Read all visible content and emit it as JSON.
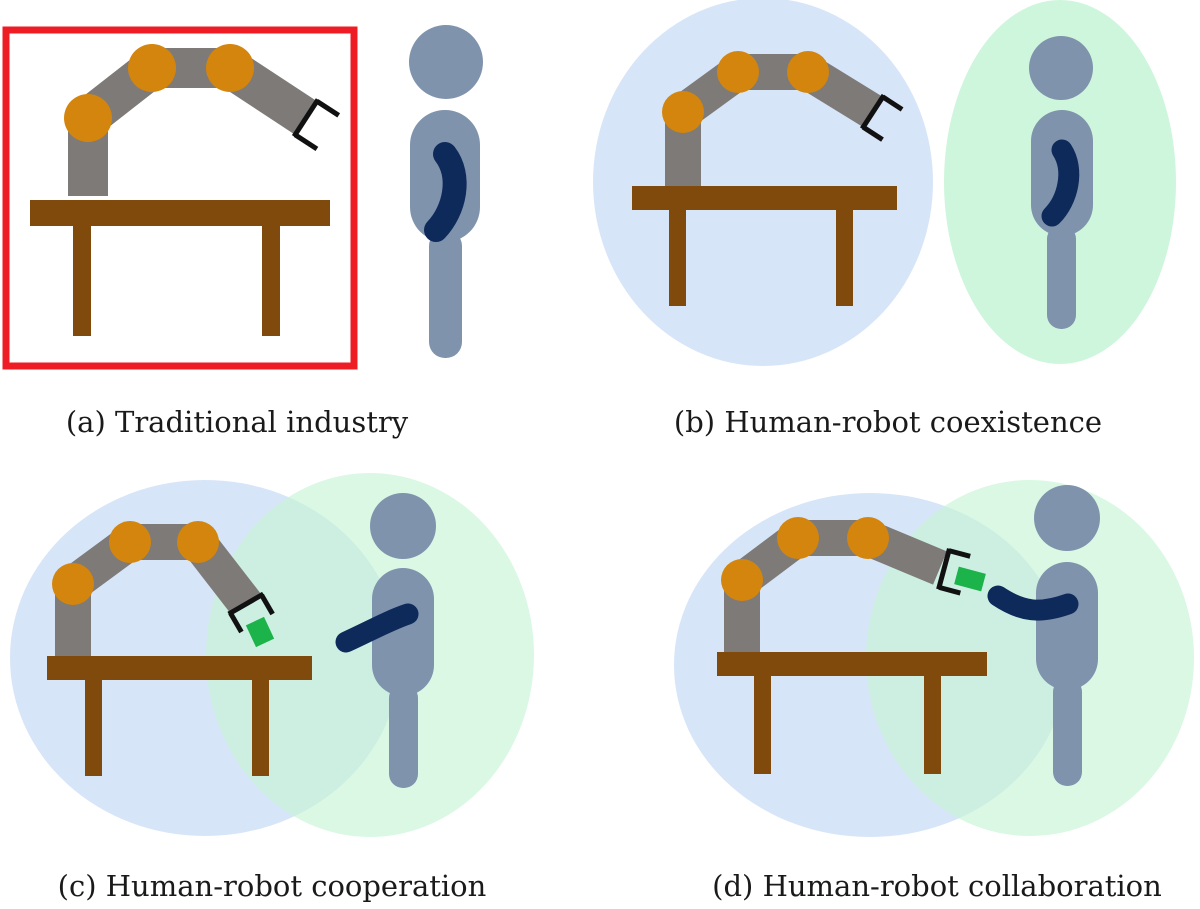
{
  "panels": [
    {
      "id": "a",
      "caption": "(a) Traditional industry"
    },
    {
      "id": "b",
      "caption": "(b) Human-robot coexistence"
    },
    {
      "id": "c",
      "caption": "(c) Human-robot cooperation"
    },
    {
      "id": "d",
      "caption": "(d) Human-robot collaboration"
    }
  ],
  "colors": {
    "table": "#7f4a0b",
    "robot_link": "#7d7a78",
    "robot_joint": "#d4850d",
    "gripper": "#111111",
    "workpiece": "#1bb34a",
    "human_body": "#7f93ad",
    "human_arm": "#0e2a5a",
    "cage": "#ee1c24",
    "robot_zone": "#c9dcf5",
    "human_zone": "#c6f5d6"
  }
}
